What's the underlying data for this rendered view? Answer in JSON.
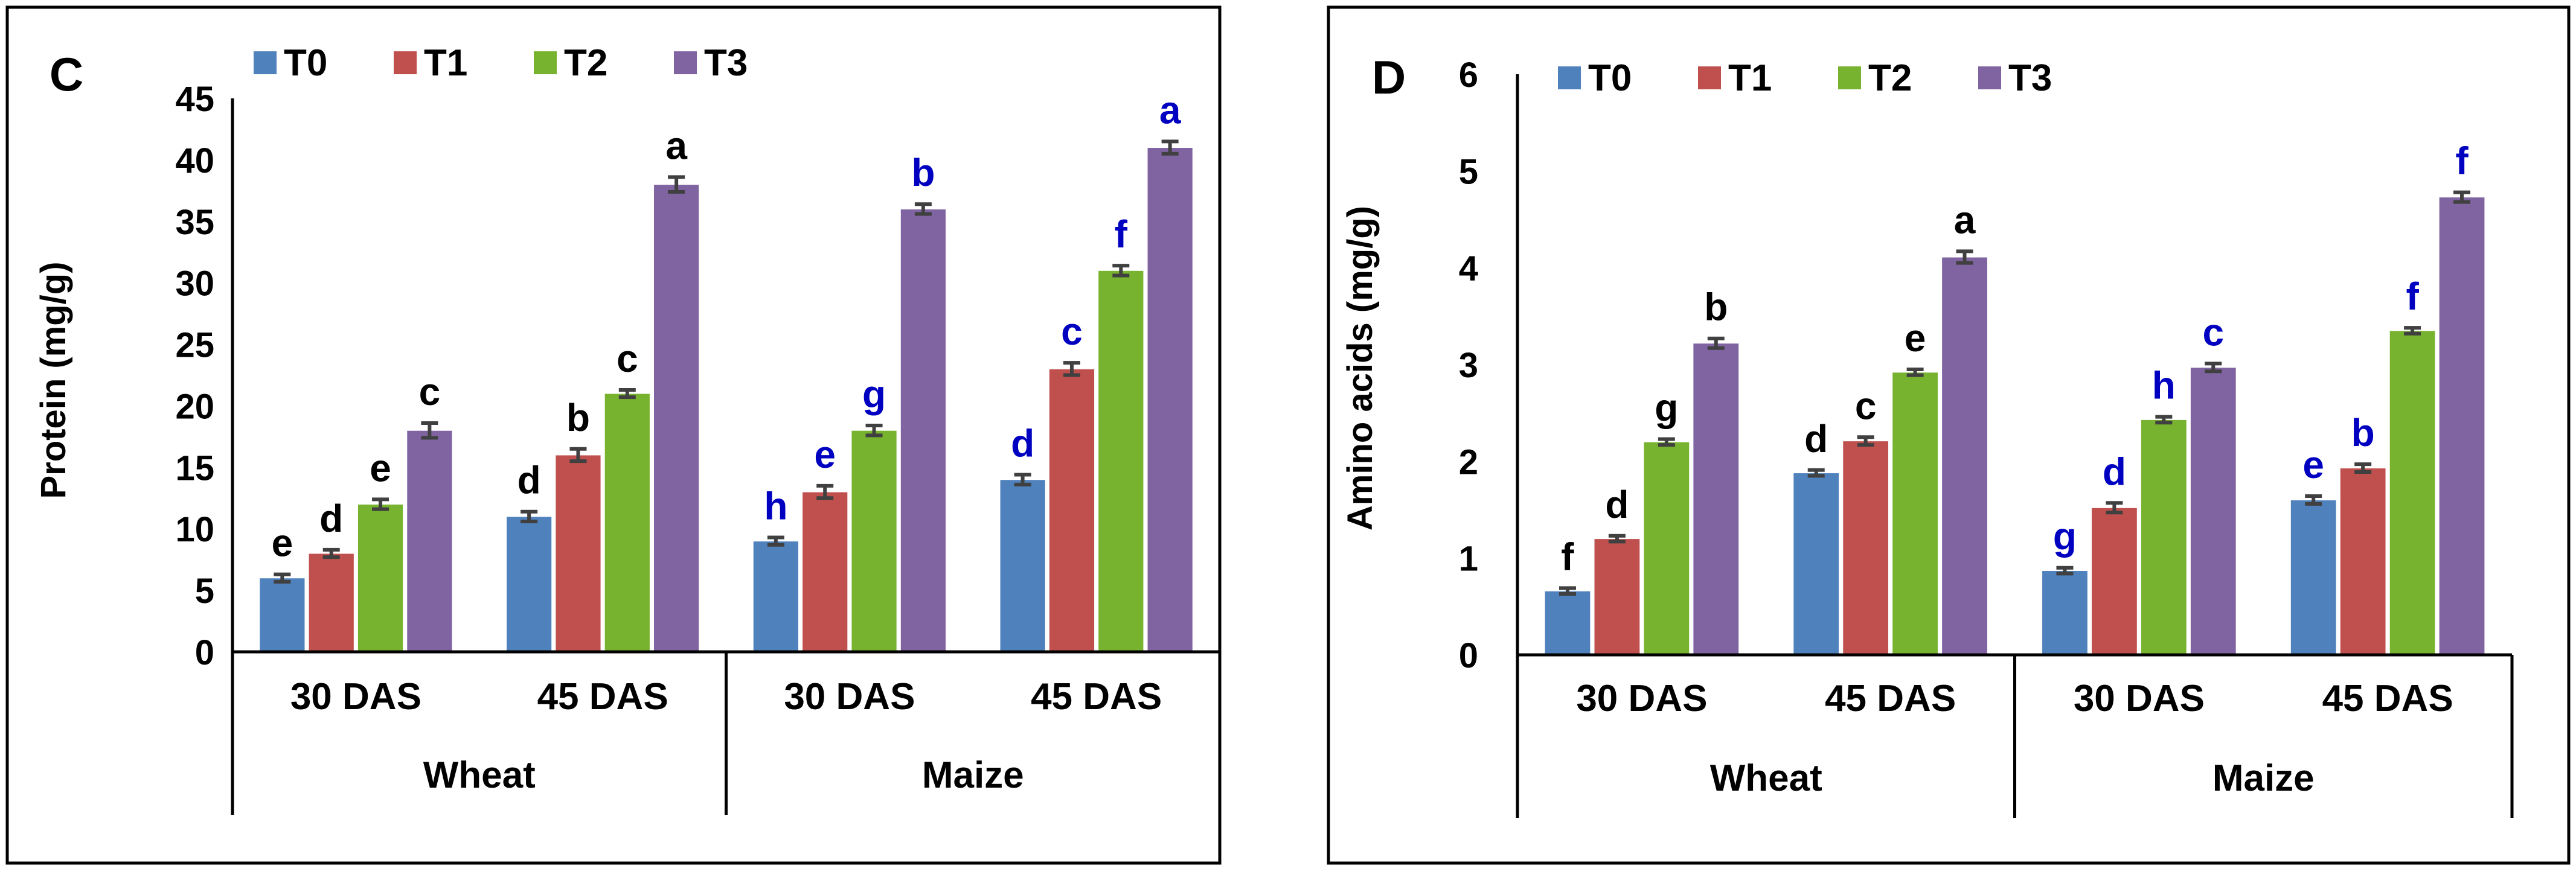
{
  "legend": [
    "T0",
    "T1",
    "T2",
    "T3"
  ],
  "colors": {
    "series": [
      "#4f81bd",
      "#c0504d",
      "#77b32e",
      "#8064a2"
    ],
    "letters_wheat": "#000000",
    "letters_maize": "#0000c0",
    "frame": "#000000",
    "error_bar": "#404040"
  },
  "chart_data": [
    {
      "type": "bar",
      "panel_label": "C",
      "ylabel": "Protein (mg/g)",
      "ylim": [
        0,
        45
      ],
      "yticks": [
        "0",
        "5",
        "10",
        "15",
        "20",
        "25",
        "30",
        "35",
        "40",
        "45"
      ],
      "groups": [
        "Wheat",
        "Maize"
      ],
      "categories": [
        "30 DAS",
        "45 DAS",
        "30 DAS",
        "45 DAS"
      ],
      "category_group": [
        "Wheat",
        "Wheat",
        "Maize",
        "Maize"
      ],
      "series": [
        {
          "name": "T0",
          "values": [
            6,
            11,
            9,
            14
          ],
          "errors": [
            0.3,
            0.4,
            0.3,
            0.4
          ],
          "letters": [
            "e",
            "d",
            "h",
            "d"
          ]
        },
        {
          "name": "T1",
          "values": [
            8,
            16,
            13,
            23
          ],
          "errors": [
            0.3,
            0.5,
            0.5,
            0.5
          ],
          "letters": [
            "d",
            "b",
            "e",
            "c"
          ]
        },
        {
          "name": "T2",
          "values": [
            12,
            21,
            18,
            31
          ],
          "errors": [
            0.4,
            0.3,
            0.4,
            0.4
          ],
          "letters": [
            "e",
            "c",
            "g",
            "f"
          ]
        },
        {
          "name": "T3",
          "values": [
            18,
            38,
            36,
            41
          ],
          "errors": [
            0.6,
            0.6,
            0.4,
            0.5
          ],
          "letters": [
            "c",
            "a",
            "b",
            "a"
          ]
        }
      ]
    },
    {
      "type": "bar",
      "panel_label": "D",
      "ylabel": "Amino acids (mg/g)",
      "ylim": [
        0,
        6
      ],
      "yticks": [
        "0",
        "1",
        "2",
        "3",
        "4",
        "5",
        "6"
      ],
      "groups": [
        "Wheat",
        "Maize"
      ],
      "categories": [
        "30 DAS",
        "45 DAS",
        "30 DAS",
        "45 DAS"
      ],
      "category_group": [
        "Wheat",
        "Wheat",
        "Maize",
        "Maize"
      ],
      "series": [
        {
          "name": "T0",
          "values": [
            0.66,
            1.88,
            0.87,
            1.6
          ],
          "errors": [
            0.03,
            0.03,
            0.03,
            0.04
          ],
          "letters": [
            "f",
            "d",
            "g",
            "e"
          ]
        },
        {
          "name": "T1",
          "values": [
            1.2,
            2.21,
            1.52,
            1.93
          ],
          "errors": [
            0.03,
            0.04,
            0.05,
            0.04
          ],
          "letters": [
            "d",
            "c",
            "d",
            "b"
          ]
        },
        {
          "name": "T2",
          "values": [
            2.2,
            2.92,
            2.43,
            3.35
          ],
          "errors": [
            0.03,
            0.03,
            0.03,
            0.03
          ],
          "letters": [
            "g",
            "e",
            "h",
            "f"
          ]
        },
        {
          "name": "T3",
          "values": [
            3.22,
            4.11,
            2.97,
            4.73
          ],
          "errors": [
            0.05,
            0.06,
            0.04,
            0.05
          ],
          "letters": [
            "b",
            "a",
            "c",
            "f"
          ]
        }
      ]
    }
  ]
}
